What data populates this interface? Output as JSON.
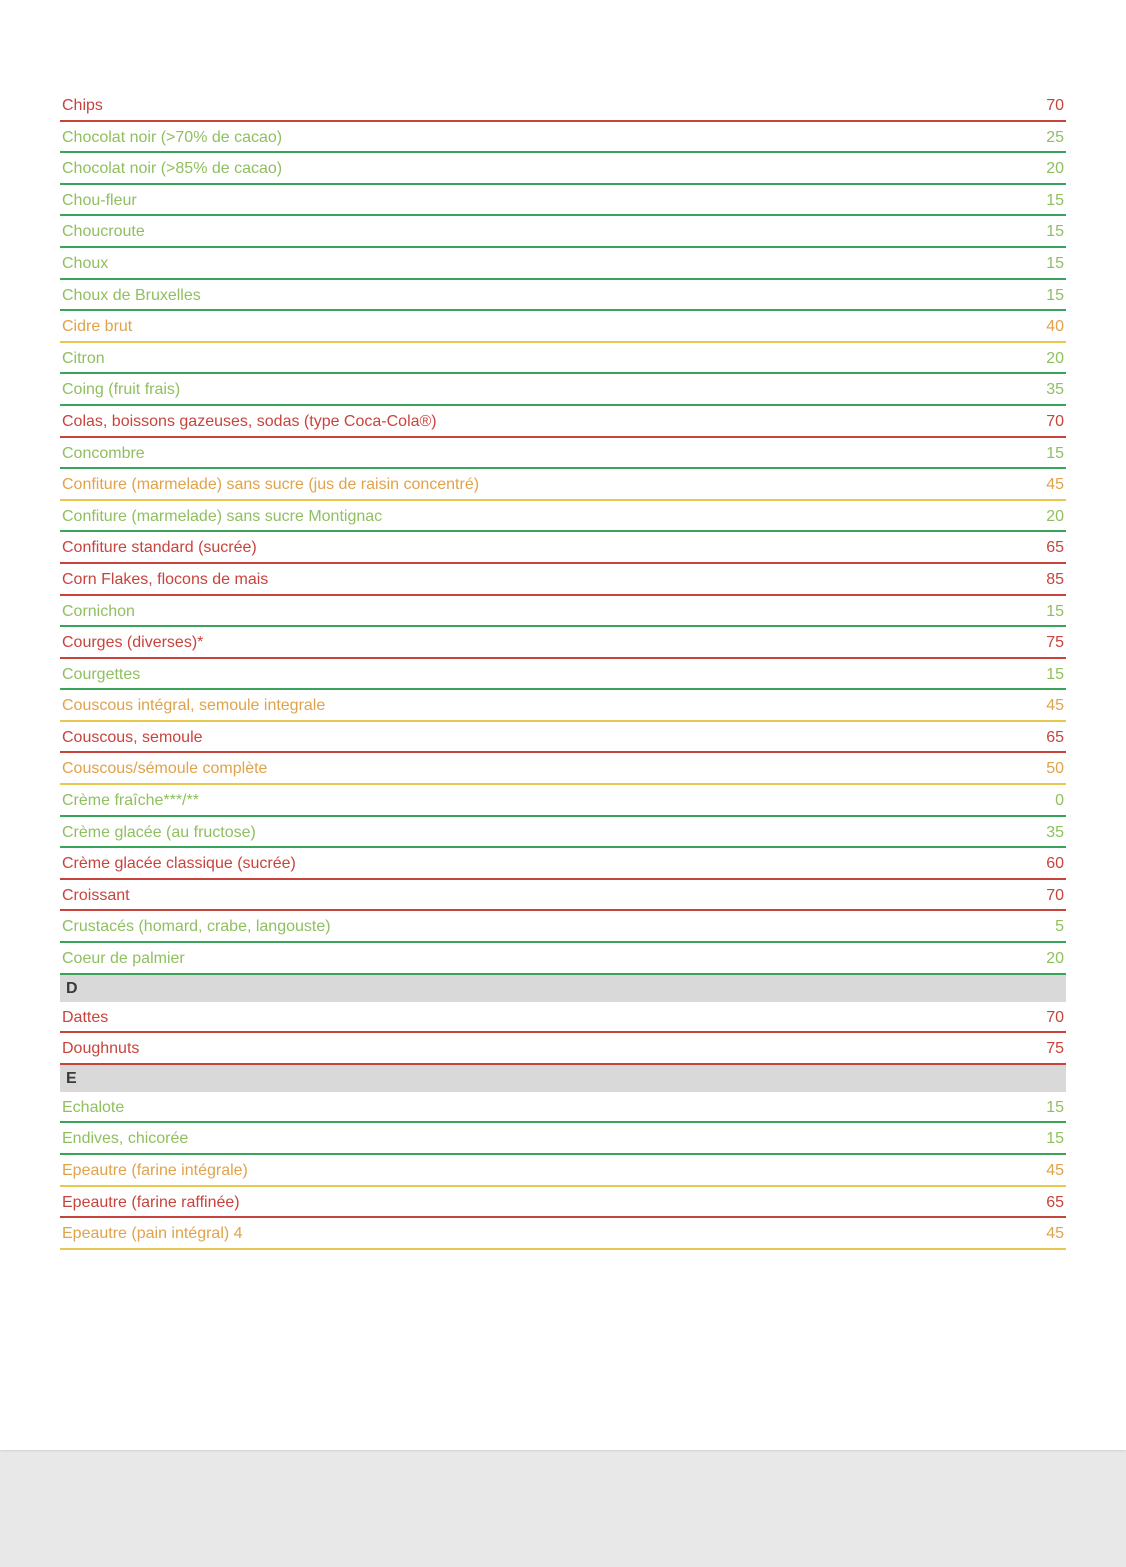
{
  "colors": {
    "green_text": "#8fbf5f",
    "green_border": "#3aa35a",
    "orange_text": "#e0a24a",
    "orange_border": "#e9c84e",
    "red_text": "#c9433d",
    "red_border": "#c9433d",
    "section_bg": "#d9d9d9",
    "section_text": "#3a3a3a"
  },
  "rows": [
    {
      "kind": "item",
      "tier": "red",
      "name": "Chips",
      "value": "70"
    },
    {
      "kind": "item",
      "tier": "green",
      "name": "Chocolat noir (>70% de cacao)",
      "value": "25"
    },
    {
      "kind": "item",
      "tier": "green",
      "name": "Chocolat noir (>85% de cacao)",
      "value": "20"
    },
    {
      "kind": "item",
      "tier": "green",
      "name": "Chou-fleur",
      "value": "15"
    },
    {
      "kind": "item",
      "tier": "green",
      "name": "Choucroute",
      "value": "15"
    },
    {
      "kind": "item",
      "tier": "green",
      "name": "Choux",
      "value": "15"
    },
    {
      "kind": "item",
      "tier": "green",
      "name": "Choux de Bruxelles",
      "value": "15"
    },
    {
      "kind": "item",
      "tier": "orange",
      "name": "Cidre brut",
      "value": "40"
    },
    {
      "kind": "item",
      "tier": "green",
      "name": "Citron",
      "value": "20"
    },
    {
      "kind": "item",
      "tier": "green",
      "name": "Coing (fruit frais)",
      "value": "35"
    },
    {
      "kind": "item",
      "tier": "red",
      "name": "Colas, boissons gazeuses, sodas (type Coca-Cola®)",
      "value": "70"
    },
    {
      "kind": "item",
      "tier": "green",
      "name": "Concombre",
      "value": "15"
    },
    {
      "kind": "item",
      "tier": "orange",
      "name": "Confiture (marmelade) sans sucre (jus de raisin concentré)",
      "value": "45"
    },
    {
      "kind": "item",
      "tier": "green",
      "name": "Confiture (marmelade) sans sucre Montignac",
      "value": "20"
    },
    {
      "kind": "item",
      "tier": "red",
      "name": "Confiture standard (sucrée)",
      "value": "65"
    },
    {
      "kind": "item",
      "tier": "red",
      "name": "Corn Flakes, flocons de mais",
      "value": "85"
    },
    {
      "kind": "item",
      "tier": "green",
      "name": "Cornichon",
      "value": "15"
    },
    {
      "kind": "item",
      "tier": "red",
      "name": "Courges (diverses)*",
      "value": "75"
    },
    {
      "kind": "item",
      "tier": "green",
      "name": "Courgettes",
      "value": "15"
    },
    {
      "kind": "item",
      "tier": "orange",
      "name": "Couscous intégral, semoule integrale",
      "value": "45"
    },
    {
      "kind": "item",
      "tier": "red",
      "name": "Couscous, semoule",
      "value": "65"
    },
    {
      "kind": "item",
      "tier": "orange",
      "name": "Couscous/sémoule complète",
      "value": "50"
    },
    {
      "kind": "item",
      "tier": "green",
      "name": "Crème fraîche***/**",
      "value": "0"
    },
    {
      "kind": "item",
      "tier": "green",
      "name": "Crème glacée (au fructose)",
      "value": "35"
    },
    {
      "kind": "item",
      "tier": "red",
      "name": "Crème glacée classique (sucrée)",
      "value": "60"
    },
    {
      "kind": "item",
      "tier": "red",
      "name": "Croissant",
      "value": "70"
    },
    {
      "kind": "item",
      "tier": "green",
      "name": "Crustacés (homard, crabe, langouste)",
      "value": "5"
    },
    {
      "kind": "item",
      "tier": "green",
      "name": "Coeur de palmier",
      "value": "20"
    },
    {
      "kind": "section",
      "label": "D"
    },
    {
      "kind": "item",
      "tier": "red",
      "name": "Dattes",
      "value": "70"
    },
    {
      "kind": "item",
      "tier": "red",
      "name": "Doughnuts",
      "value": "75"
    },
    {
      "kind": "section",
      "label": "E"
    },
    {
      "kind": "item",
      "tier": "green",
      "name": "Echalote",
      "value": "15"
    },
    {
      "kind": "item",
      "tier": "green",
      "name": "Endives, chicorée",
      "value": "15"
    },
    {
      "kind": "item",
      "tier": "orange",
      "name": "Epeautre (farine intégrale)",
      "value": "45"
    },
    {
      "kind": "item",
      "tier": "red",
      "name": "Epeautre (farine raffinée)",
      "value": "65"
    },
    {
      "kind": "item",
      "tier": "orange",
      "name": "Epeautre (pain intégral) 4",
      "value": "45"
    }
  ]
}
